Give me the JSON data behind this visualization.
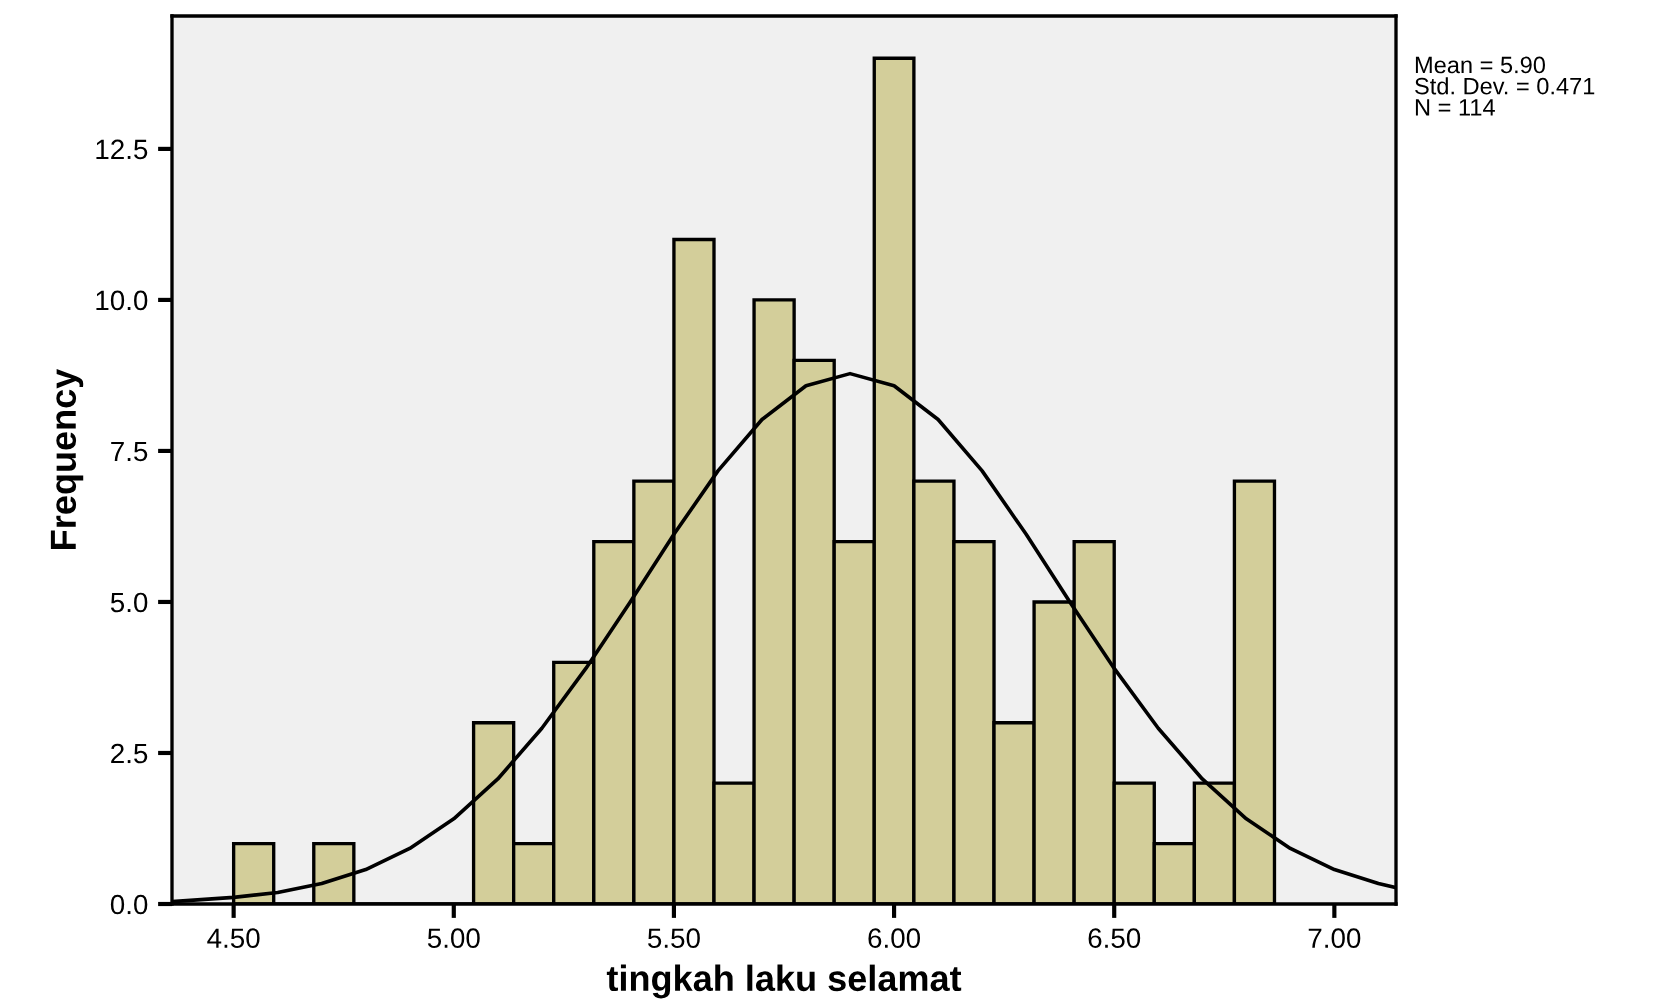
{
  "chart_data": {
    "type": "histogram",
    "xlabel": "tingkah laku selamat",
    "ylabel": "Frequency",
    "annotations": [
      "Mean = 5.90\nStd. Dev. = 0.471\nN = 114"
    ],
    "series": [
      {
        "type": "histogram",
        "color": "#d3ce9a",
        "bins": [
          4.5,
          4.591,
          4.682,
          4.773,
          4.864,
          4.955,
          5.045,
          5.136,
          5.227,
          5.318,
          5.409,
          5.5,
          5.591,
          5.682,
          5.773,
          5.864,
          5.955,
          6.045,
          6.136,
          6.227,
          6.318,
          6.409,
          6.5,
          6.591,
          6.682,
          6.773,
          6.864
        ],
        "values": [
          1,
          0,
          1,
          0,
          0,
          0,
          3,
          1,
          4,
          6,
          7,
          11,
          2,
          10,
          9,
          6,
          14,
          7,
          6,
          3,
          5,
          6,
          2,
          1,
          2,
          7
        ]
      },
      {
        "type": "line",
        "color": "#000000",
        "x": [
          4.36,
          4.5,
          4.6,
          4.7,
          4.8,
          4.9,
          5.0,
          5.1,
          5.2,
          5.3,
          5.4,
          5.5,
          5.6,
          5.7,
          5.8,
          5.9,
          6.0,
          6.1,
          6.2,
          6.3,
          6.4,
          6.5,
          6.6,
          6.7,
          6.8,
          6.9,
          7.0,
          7.1,
          7.14
        ],
        "values": [
          0.04,
          0.11,
          0.19,
          0.34,
          0.57,
          0.92,
          1.41,
          2.07,
          2.91,
          3.9,
          4.99,
          6.12,
          7.17,
          8.02,
          8.58,
          8.78,
          8.58,
          8.02,
          7.17,
          6.12,
          4.99,
          3.9,
          2.91,
          2.07,
          1.41,
          0.92,
          0.57,
          0.34,
          0.27
        ]
      }
    ],
    "xlim": [
      4.36,
      7.14
    ],
    "ylim": [
      0,
      14.7
    ],
    "xticks": [
      {
        "value": 4.5,
        "label": "4.50"
      },
      {
        "value": 5.0,
        "label": "5.00"
      },
      {
        "value": 5.5,
        "label": "5.50"
      },
      {
        "value": 6.0,
        "label": "6.00"
      },
      {
        "value": 6.5,
        "label": "6.50"
      },
      {
        "value": 7.0,
        "label": "7.00"
      }
    ],
    "yticks": [
      {
        "value": 0,
        "label": "0.0"
      },
      {
        "value": 2.5,
        "label": "2.5"
      },
      {
        "value": 5.0,
        "label": "5.0"
      },
      {
        "value": 7.5,
        "label": "7.5"
      },
      {
        "value": 10.0,
        "label": "10.0"
      },
      {
        "value": 12.5,
        "label": "12.5"
      }
    ],
    "grid": false,
    "legend": false
  }
}
